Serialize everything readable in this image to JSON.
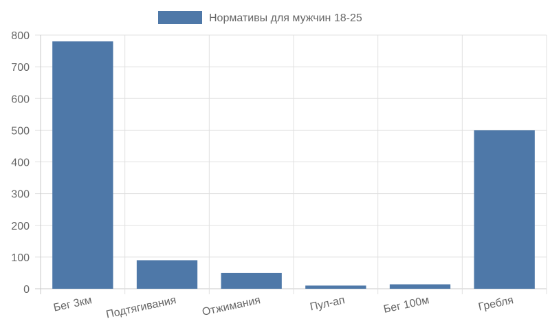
{
  "chart_data": {
    "type": "bar",
    "categories": [
      "Бег 3км",
      "Подтягивания",
      "Отжимания",
      "Пул-ап",
      "Бег 100м",
      "Гребля"
    ],
    "series": [
      {
        "name": "Нормативы для мужчин 18-25",
        "values": [
          780,
          90,
          50,
          10,
          14,
          500
        ],
        "color": "#4e78a8"
      }
    ],
    "ylim": [
      0,
      800
    ],
    "yticks": [
      0,
      100,
      200,
      300,
      400,
      500,
      600,
      700,
      800
    ],
    "grid": true,
    "legend_position": "top-center",
    "title": "",
    "xlabel": "",
    "ylabel": ""
  }
}
